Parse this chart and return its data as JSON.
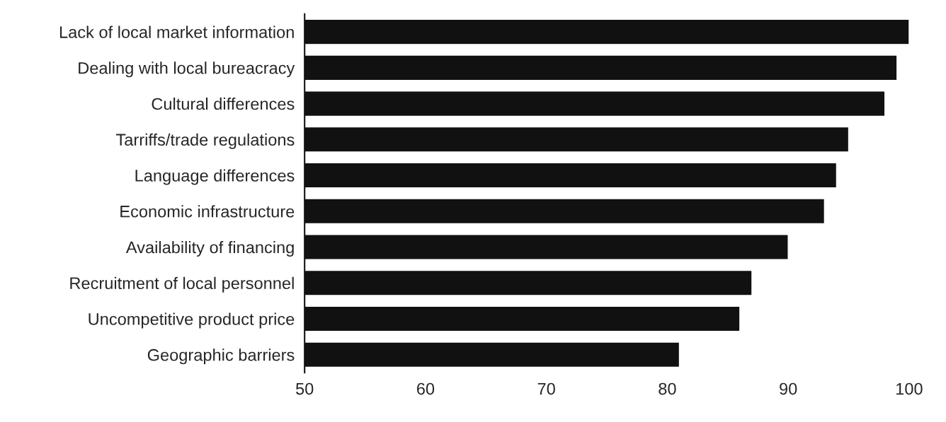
{
  "chart_data": {
    "type": "bar",
    "orientation": "horizontal",
    "categories": [
      "Lack of local market information",
      "Dealing with local bureacracy",
      "Cultural differences",
      "Tarriffs/trade regulations",
      "Language differences",
      "Economic infrastructure",
      "Availability of financing",
      "Recruitment of local personnel",
      "Uncompetitive product price",
      "Geographic barriers"
    ],
    "values": [
      100,
      99,
      98,
      95,
      94,
      93,
      90,
      87,
      86,
      81
    ],
    "color": "#111111",
    "xlim": [
      50,
      100
    ],
    "xticks": [
      50,
      60,
      70,
      80,
      90,
      100
    ],
    "grid": false,
    "legend": false
  }
}
